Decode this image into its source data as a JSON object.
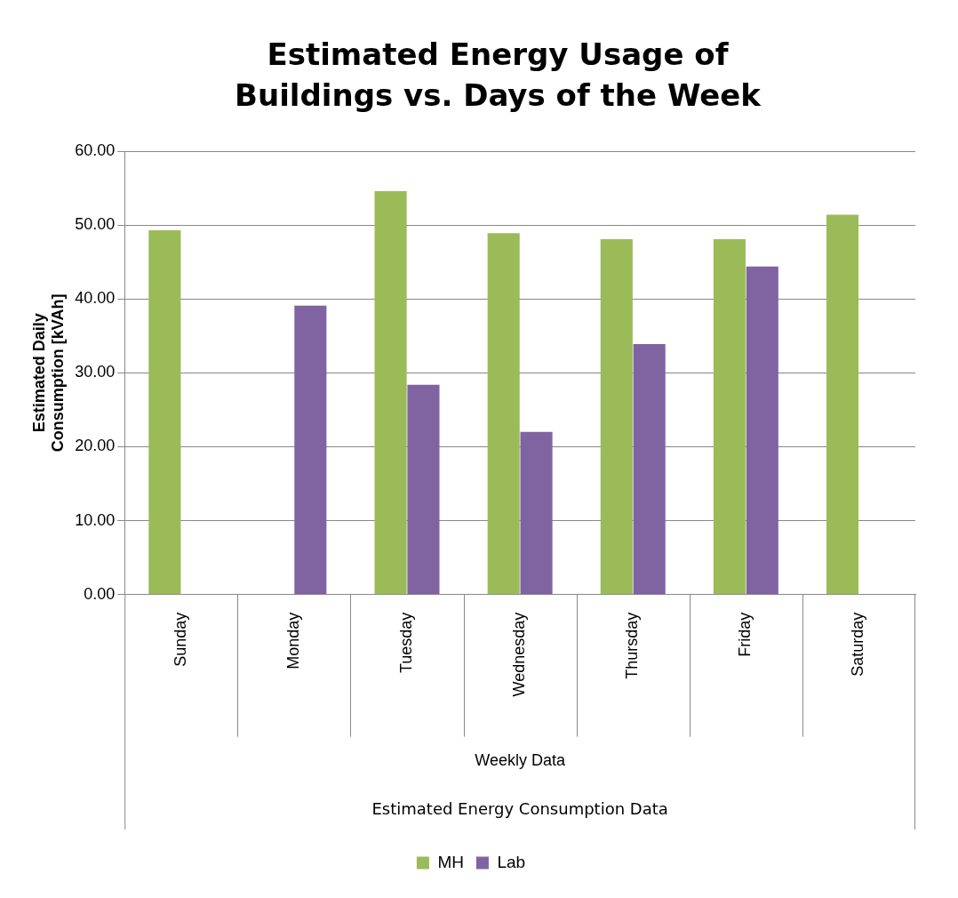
{
  "chart_data": {
    "type": "bar",
    "title": "Estimated Energy Usage of Buildings vs. Days of the Week",
    "xlabel": "Weekly Data",
    "ylabel": "Estimated Daily Consumption [kVAh]",
    "annotations": [
      "Estimated Energy Consumption Data"
    ],
    "categories": [
      "Sunday",
      "Monday",
      "Tuesday",
      "Wednesday",
      "Thursday",
      "Friday",
      "Saturday"
    ],
    "series": [
      {
        "name": "MH",
        "color": "#9bbb59",
        "values": [
          49.3,
          null,
          54.6,
          48.9,
          48.1,
          48.1,
          51.4
        ]
      },
      {
        "name": "Lab",
        "color": "#8064a2",
        "values": [
          null,
          39.1,
          28.4,
          22.0,
          33.9,
          44.4,
          null
        ]
      }
    ],
    "ylim": [
      0,
      60
    ],
    "yticks": [
      {
        "value": 0,
        "label": "0.00"
      },
      {
        "value": 10,
        "label": "10.00"
      },
      {
        "value": 20,
        "label": "20.00"
      },
      {
        "value": 30,
        "label": "30.00"
      },
      {
        "value": 40,
        "label": "40.00"
      },
      {
        "value": 50,
        "label": "50.00"
      },
      {
        "value": 60,
        "label": "60.00"
      }
    ],
    "grid": "y",
    "legend": "bottom"
  }
}
